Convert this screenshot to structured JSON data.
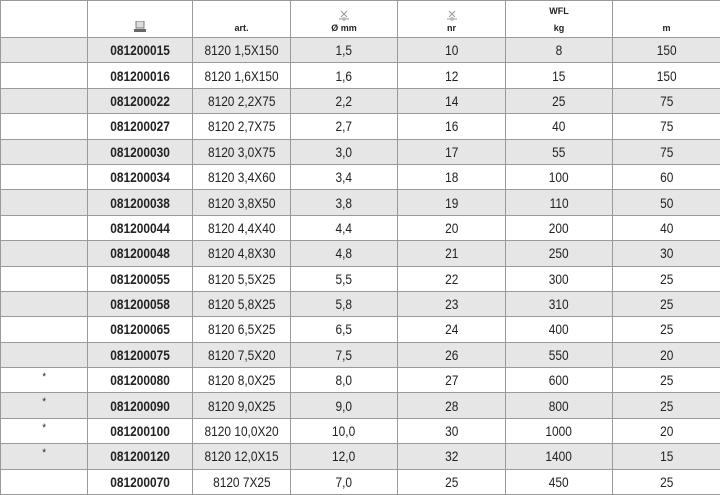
{
  "header": {
    "col_star": "",
    "col_code_icon": "computer-icon",
    "col_art": "art.",
    "col_diam_icon": "wire-diameter-icon",
    "col_diam": "Ø mm",
    "col_nr_icon": "wire-count-icon",
    "col_nr": "nr",
    "col_wfl_top": "WFL",
    "col_wfl": "kg",
    "col_m": "m"
  },
  "rows": [
    {
      "star": "",
      "code": "081200015",
      "art": "8120 1,5X150",
      "diam": "1,5",
      "nr": "10",
      "kg": "8",
      "m": "150"
    },
    {
      "star": "",
      "code": "081200016",
      "art": "8120 1,6X150",
      "diam": "1,6",
      "nr": "12",
      "kg": "15",
      "m": "150"
    },
    {
      "star": "",
      "code": "081200022",
      "art": "8120 2,2X75",
      "diam": "2,2",
      "nr": "14",
      "kg": "25",
      "m": "75"
    },
    {
      "star": "",
      "code": "081200027",
      "art": "8120 2,7X75",
      "diam": "2,7",
      "nr": "16",
      "kg": "40",
      "m": "75"
    },
    {
      "star": "",
      "code": "081200030",
      "art": "8120 3,0X75",
      "diam": "3,0",
      "nr": "17",
      "kg": "55",
      "m": "75"
    },
    {
      "star": "",
      "code": "081200034",
      "art": "8120 3,4X60",
      "diam": "3,4",
      "nr": "18",
      "kg": "100",
      "m": "60"
    },
    {
      "star": "",
      "code": "081200038",
      "art": "8120 3,8X50",
      "diam": "3,8",
      "nr": "19",
      "kg": "110",
      "m": "50"
    },
    {
      "star": "",
      "code": "081200044",
      "art": "8120 4,4X40",
      "diam": "4,4",
      "nr": "20",
      "kg": "200",
      "m": "40"
    },
    {
      "star": "",
      "code": "081200048",
      "art": "8120 4,8X30",
      "diam": "4,8",
      "nr": "21",
      "kg": "250",
      "m": "30"
    },
    {
      "star": "",
      "code": "081200055",
      "art": "8120 5,5X25",
      "diam": "5,5",
      "nr": "22",
      "kg": "300",
      "m": "25"
    },
    {
      "star": "",
      "code": "081200058",
      "art": "8120 5,8X25",
      "diam": "5,8",
      "nr": "23",
      "kg": "310",
      "m": "25"
    },
    {
      "star": "",
      "code": "081200065",
      "art": "8120 6,5X25",
      "diam": "6,5",
      "nr": "24",
      "kg": "400",
      "m": "25"
    },
    {
      "star": "",
      "code": "081200075",
      "art": "8120 7,5X20",
      "diam": "7,5",
      "nr": "26",
      "kg": "550",
      "m": "20"
    },
    {
      "star": "*",
      "code": "081200080",
      "art": "8120 8,0X25",
      "diam": "8,0",
      "nr": "27",
      "kg": "600",
      "m": "25"
    },
    {
      "star": "*",
      "code": "081200090",
      "art": "8120 9,0X25",
      "diam": "9,0",
      "nr": "28",
      "kg": "800",
      "m": "25"
    },
    {
      "star": "*",
      "code": "081200100",
      "art": "8120 10,0X20",
      "diam": "10,0",
      "nr": "30",
      "kg": "1000",
      "m": "20"
    },
    {
      "star": "*",
      "code": "081200120",
      "art": "8120 12,0X15",
      "diam": "12,0",
      "nr": "32",
      "kg": "1400",
      "m": "15"
    },
    {
      "star": "",
      "code": "081200070",
      "art": "8120 7X25",
      "diam": "7,0",
      "nr": "25",
      "kg": "450",
      "m": "25"
    }
  ]
}
